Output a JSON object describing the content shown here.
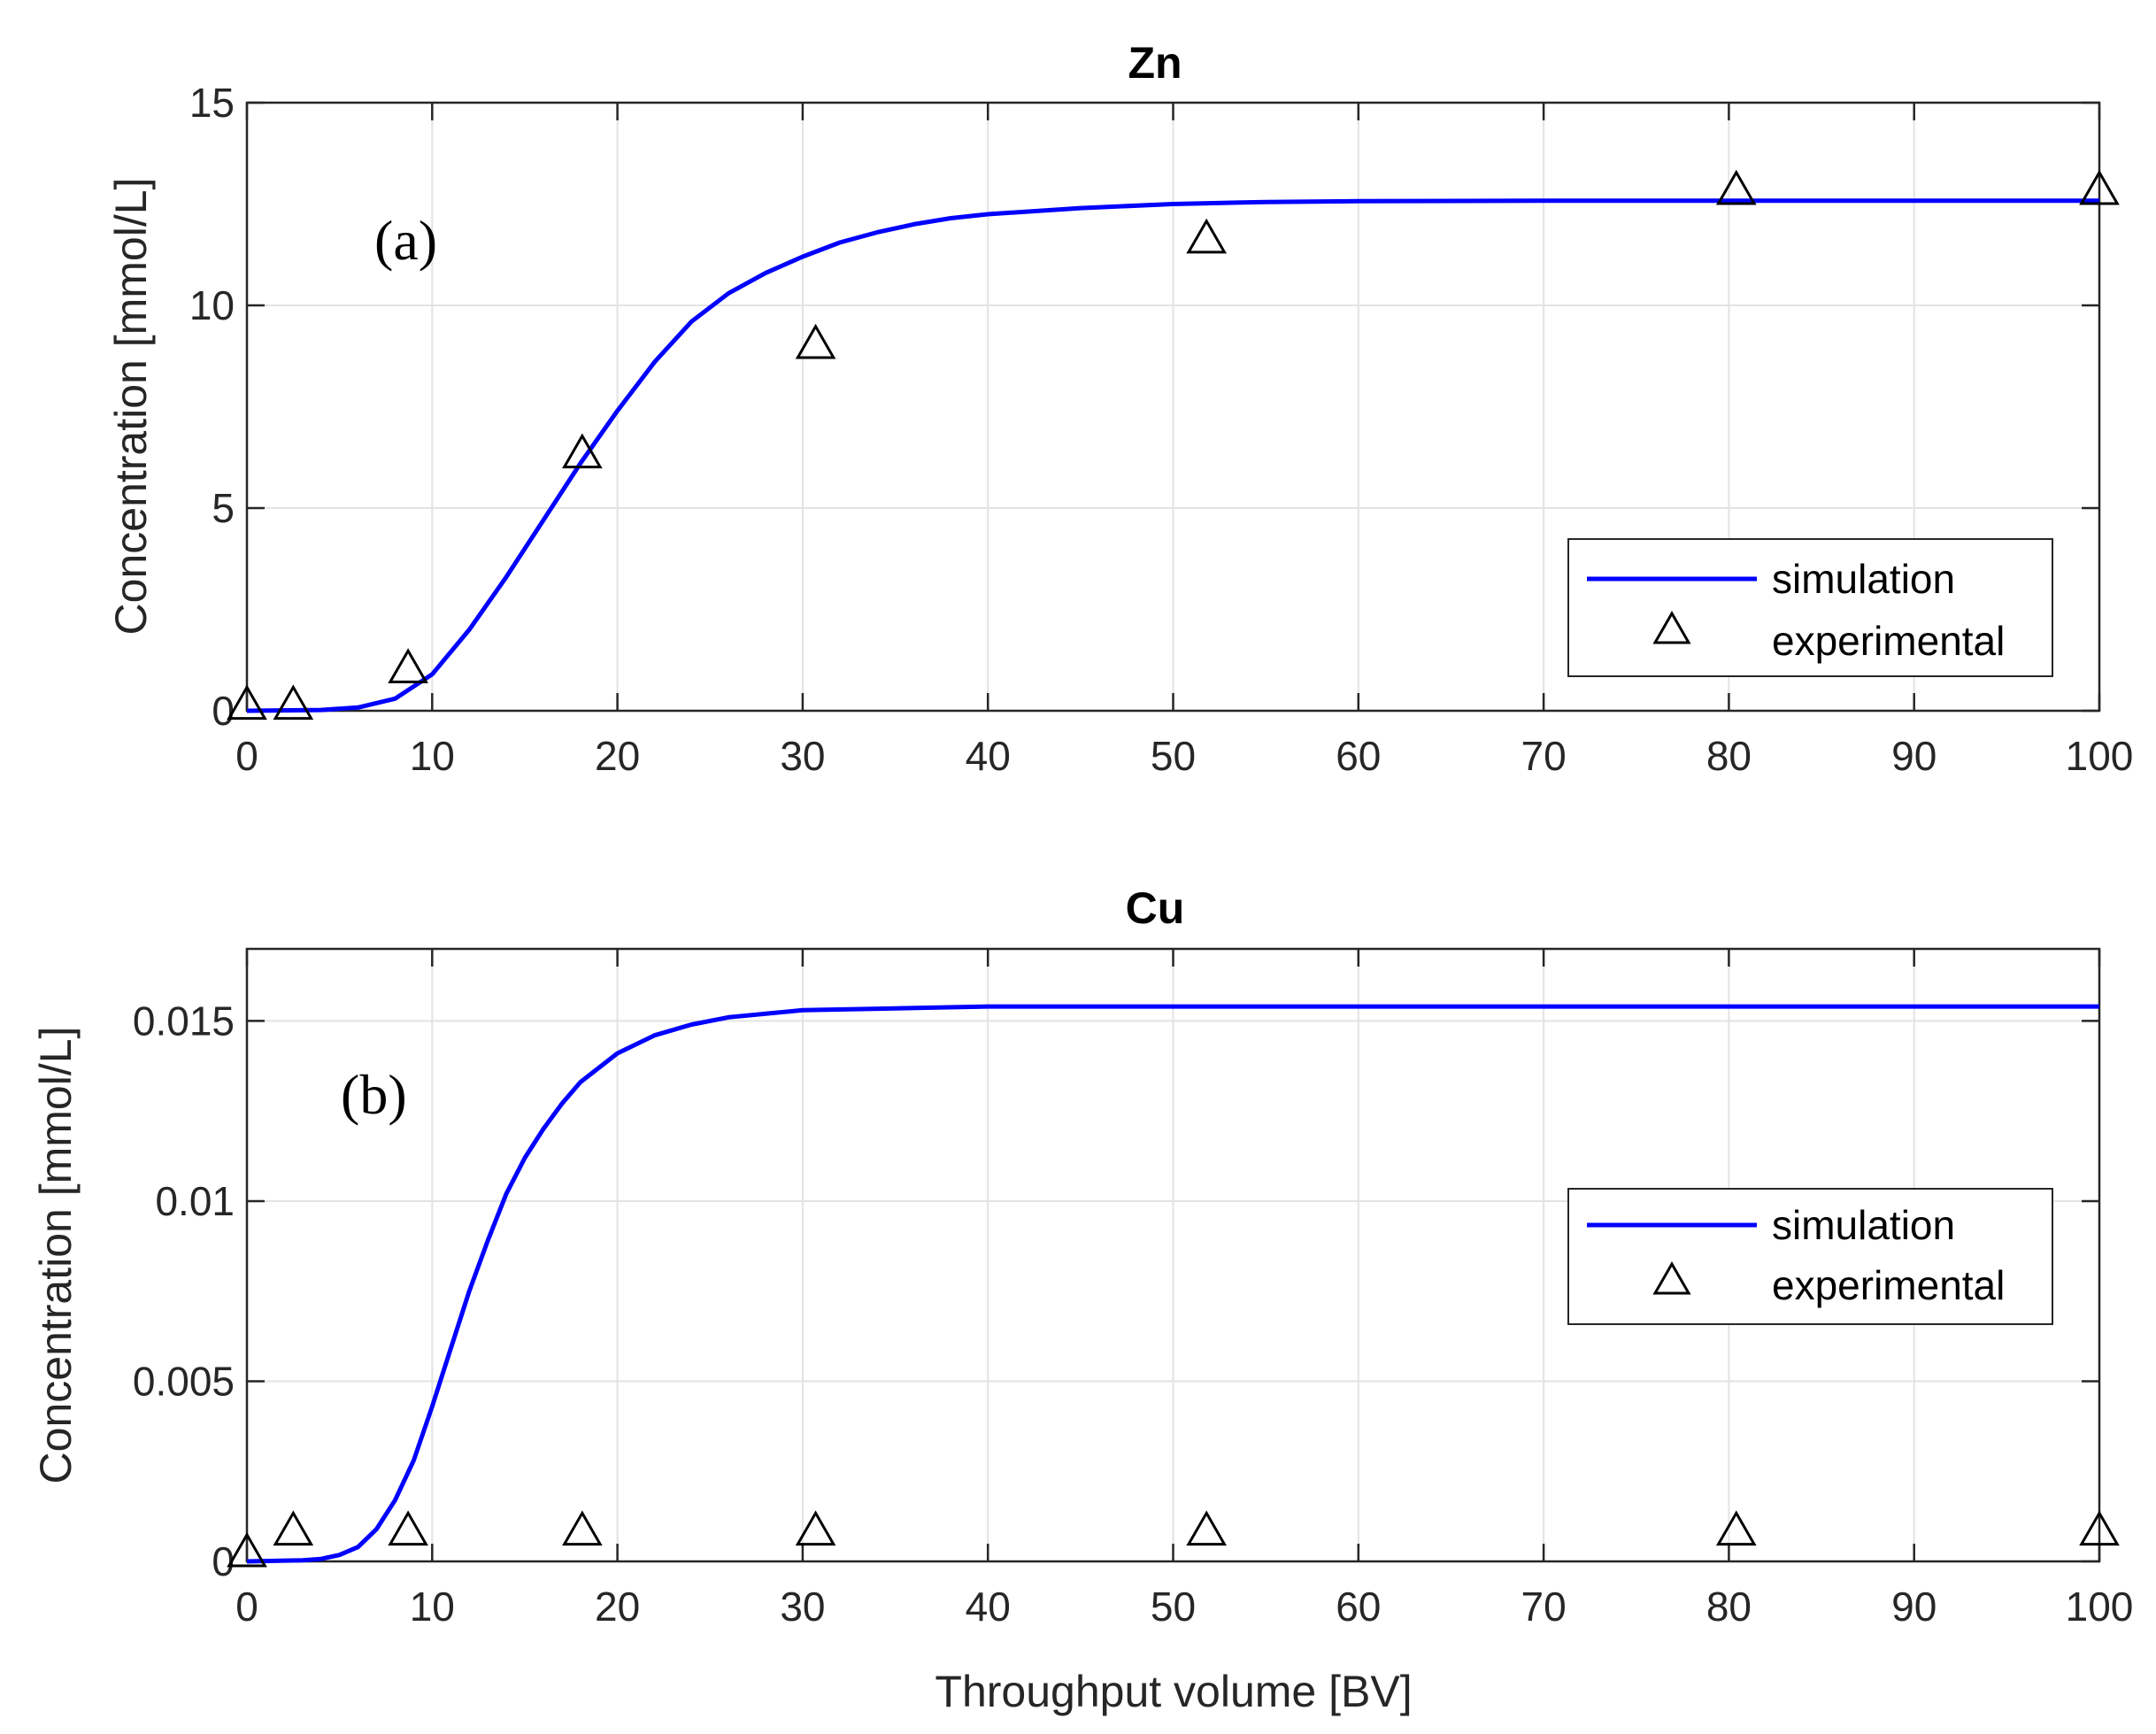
{
  "chart_data": [
    {
      "type": "line",
      "title": "Zn",
      "panel_label": "(a)",
      "xlabel": "",
      "ylabel": "Concentration [mmol/L]",
      "xlim": [
        0,
        100
      ],
      "ylim": [
        0,
        15
      ],
      "xticks": [
        0,
        10,
        20,
        30,
        40,
        50,
        60,
        70,
        80,
        90,
        100
      ],
      "yticks": [
        0,
        5,
        10,
        15
      ],
      "xtick_labels": [
        "0",
        "10",
        "20",
        "30",
        "40",
        "50",
        "60",
        "70",
        "80",
        "90",
        "100"
      ],
      "ytick_labels": [
        "0",
        "5",
        "10",
        "15"
      ],
      "grid": true,
      "legend_position": "bottom-right",
      "series": [
        {
          "name": "simulation",
          "kind": "line",
          "color": "#0000ff",
          "x": [
            0,
            4,
            6,
            8,
            10,
            12,
            14,
            16,
            18,
            20,
            22,
            24,
            26,
            28,
            30,
            32,
            34,
            36,
            38,
            40,
            45,
            50,
            55,
            60,
            70,
            80,
            90,
            100
          ],
          "y": [
            0,
            0.02,
            0.08,
            0.3,
            0.9,
            2.0,
            3.3,
            4.7,
            6.1,
            7.4,
            8.6,
            9.6,
            10.3,
            10.8,
            11.2,
            11.55,
            11.8,
            12.0,
            12.15,
            12.25,
            12.4,
            12.5,
            12.55,
            12.57,
            12.58,
            12.58,
            12.58,
            12.58
          ]
        },
        {
          "name": "experimental",
          "kind": "marker",
          "marker": "triangle",
          "color": "#000000",
          "x": [
            0,
            2.5,
            8.7,
            18.1,
            30.7,
            51.8,
            80.4,
            100
          ],
          "y": [
            0.1,
            0.1,
            1.0,
            6.3,
            9.0,
            11.6,
            12.8,
            12.8
          ]
        }
      ]
    },
    {
      "type": "line",
      "title": "Cu",
      "panel_label": "(b)",
      "xlabel": "Throughput volume [BV]",
      "ylabel": "Concentration [mmol/L]",
      "xlim": [
        0,
        100
      ],
      "ylim": [
        0,
        0.017
      ],
      "xticks": [
        0,
        10,
        20,
        30,
        40,
        50,
        60,
        70,
        80,
        90,
        100
      ],
      "yticks": [
        0,
        0.005,
        0.01,
        0.015
      ],
      "xtick_labels": [
        "0",
        "10",
        "20",
        "30",
        "40",
        "50",
        "60",
        "70",
        "80",
        "90",
        "100"
      ],
      "ytick_labels": [
        "0",
        "0.005",
        "0.01",
        "0.015"
      ],
      "grid": true,
      "legend_position": "right",
      "series": [
        {
          "name": "simulation",
          "kind": "line",
          "color": "#0000ff",
          "x": [
            0,
            3,
            4,
            5,
            6,
            7,
            8,
            9,
            10,
            11,
            12,
            13,
            14,
            15,
            16,
            17,
            18,
            20,
            22,
            24,
            26,
            28,
            30,
            35,
            40,
            50,
            60,
            80,
            100
          ],
          "y": [
            0,
            3e-05,
            7e-05,
            0.00018,
            0.0004,
            0.0009,
            0.0017,
            0.0028,
            0.0043,
            0.0059,
            0.0075,
            0.0089,
            0.0102,
            0.0112,
            0.012,
            0.0127,
            0.0133,
            0.0141,
            0.0146,
            0.0149,
            0.0151,
            0.0152,
            0.0153,
            0.01535,
            0.0154,
            0.0154,
            0.0154,
            0.0154,
            0.0154
          ]
        },
        {
          "name": "experimental",
          "kind": "marker",
          "marker": "triangle",
          "color": "#000000",
          "x": [
            0,
            2.5,
            8.7,
            18.1,
            30.7,
            51.8,
            80.4,
            100
          ],
          "y": [
            0.0002,
            0.0008,
            0.0008,
            0.0008,
            0.0008,
            0.0008,
            0.0008,
            0.0008
          ]
        }
      ]
    }
  ]
}
